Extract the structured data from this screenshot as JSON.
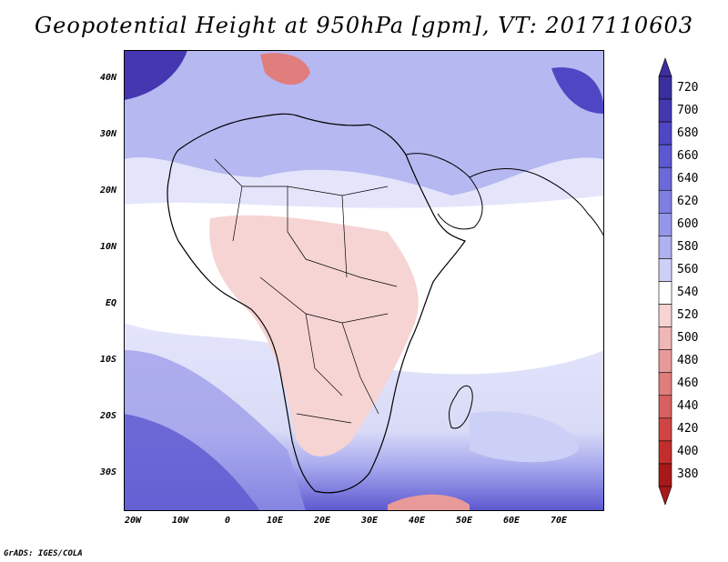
{
  "title": "Geopotential Height at 950hPa [gpm], VT: 2017110603",
  "map": {
    "lon_range": [
      -22,
      80
    ],
    "lat_range": [
      -37,
      45
    ],
    "lat_labels": [
      "40N",
      "30N",
      "20N",
      "10N",
      "EQ",
      "10S",
      "20S",
      "30S"
    ],
    "lon_labels": [
      "20W",
      "10W",
      "0",
      "10E",
      "20E",
      "30E",
      "40E",
      "50E",
      "60E",
      "70E"
    ]
  },
  "colorbar": {
    "levels": [
      "720",
      "700",
      "680",
      "660",
      "640",
      "620",
      "600",
      "580",
      "560",
      "540",
      "520",
      "500",
      "480",
      "460",
      "440",
      "420",
      "400",
      "380"
    ],
    "colors": [
      "#3a2f9c",
      "#4437b0",
      "#4f46c4",
      "#5c58d0",
      "#6c6ad8",
      "#7e7fe0",
      "#9596e8",
      "#aeb0ef",
      "#cdd0f6",
      "#ffffff",
      "#f6d4d4",
      "#f0b6b6",
      "#e89a9a",
      "#e07d7d",
      "#d86060",
      "#cf4545",
      "#c22e2e",
      "#a81a1a"
    ]
  },
  "credit": "GrADS: IGES/COLA"
}
